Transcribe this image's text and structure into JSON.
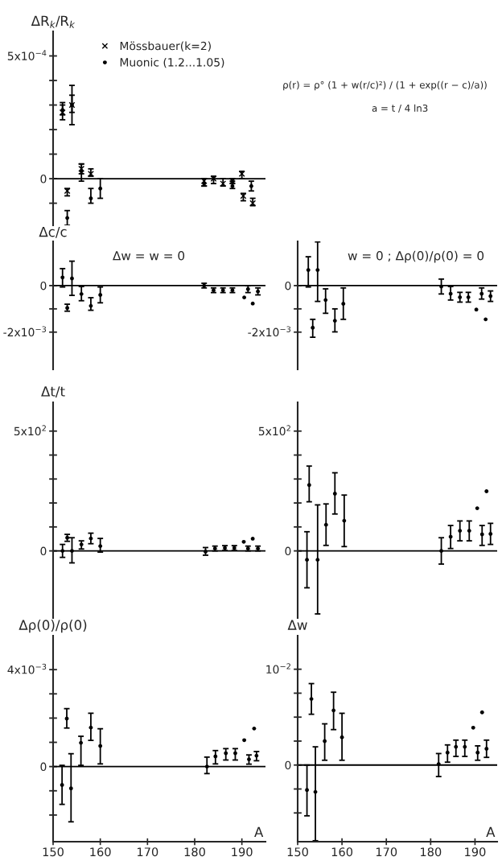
{
  "chart_data": [
    {
      "type": "scatter",
      "ylabel": "ΔR$_{k}$/R$_{k}$",
      "xlim": [
        150,
        195
      ],
      "ylim": [
        -0.00019,
        0.0006
      ],
      "tick_labels": "y",
      "legend": "top",
      "grid": false,
      "yticks": [
        {
          "value": -0.0001,
          "label": null
        },
        0,
        {
          "value": 0.0001,
          "label": null
        },
        {
          "value": 0.0002,
          "label": null
        },
        {
          "value": 0.0003,
          "label": null
        },
        {
          "value": 0.0004,
          "label": null
        },
        {
          "value": 0.0005,
          "label": "5x10$^{−4}$"
        }
      ],
      "ref_lines": [
        {
          "axis": "y",
          "value": 0,
          "color": "#000000"
        }
      ],
      "annotations": [
        "ρ(r) = ρ° (1 + w(r/c)²) / (1 + exp((r − c)/a))",
        "a = t / 4 ln3"
      ],
      "series": [
        {
          "name": "Mössbauer(k=2)",
          "color": "#000000",
          "marker": "cross",
          "x": [
            152,
            153,
            154,
            156,
            158,
            182,
            184,
            186,
            188,
            190,
            190.3,
            192.3
          ],
          "values": [
            0.00027,
            -5e-05,
            0.0003,
            4e-05,
            2e-05,
            -1e-05,
            0,
            -2e-05,
            -1e-05,
            2e-05,
            -7e-05,
            -0.0001
          ],
          "errors": [
            [
              0.00024,
              0.0003
            ],
            [
              -7e-05,
              -4e-05
            ],
            [
              0.00027,
              0.00034
            ],
            [
              2e-05,
              6e-05
            ],
            [
              1e-05,
              4e-05
            ],
            [
              -3e-05,
              0
            ],
            [
              -2e-05,
              1e-05
            ],
            [
              -3e-05,
              0
            ],
            [
              -2e-05,
              0
            ],
            [
              0,
              3e-05
            ],
            [
              -9e-05,
              -6e-05
            ],
            [
              -0.00011,
              -8e-05
            ]
          ]
        },
        {
          "name": "Muonic (1.2...1.05)",
          "color": "#000000",
          "marker": "circle",
          "x": [
            152,
            153,
            154,
            156,
            158,
            160,
            182,
            188,
            192
          ],
          "values": [
            0.00028,
            -0.00016,
            0.0003,
            3e-05,
            -8e-05,
            -4e-05,
            -2e-05,
            -3e-05,
            -3e-05
          ],
          "errors": [
            [
              0.00026,
              0.00031
            ],
            [
              -0.00019,
              -0.00013
            ],
            [
              0.00022,
              0.00038
            ],
            [
              -1e-05,
              6e-05
            ],
            [
              -0.0001,
              -4e-05
            ],
            [
              -8e-05,
              0
            ],
            [
              -3e-05,
              0
            ],
            [
              -4e-05,
              -1e-05
            ],
            [
              -5e-05,
              -1e-05
            ]
          ]
        }
      ]
    },
    {
      "type": "scatter",
      "ylabel": "Δc/c",
      "xlim": [
        150,
        195
      ],
      "ylim": [
        -0.0036,
        0.0019
      ],
      "tick_labels": "y",
      "grid": false,
      "yticks": [
        {
          "value": -0.002,
          "label": "-2x10$^{−3}$"
        },
        {
          "value": -0.001,
          "label": null
        },
        0
      ],
      "ref_lines": [
        {
          "axis": "y",
          "value": 0,
          "color": "#000000"
        }
      ],
      "annotations": [
        "Δw = w = 0"
      ],
      "series": [
        {
          "color": "#000000",
          "marker": "circle",
          "x": [
            152,
            153,
            154,
            156,
            158,
            160,
            182,
            184,
            186,
            188,
            191.3,
            193.4
          ],
          "values": [
            0.00035,
            -0.00096,
            0.00031,
            -0.00036,
            -0.00087,
            -0.0004,
            0,
            -0.0002,
            -0.0002,
            -0.0002,
            -0.00015,
            -0.00025
          ],
          "errors": [
            [
              -6e-05,
              0.00073
            ],
            [
              -0.0011,
              -0.0008
            ],
            [
              -0.00042,
              0.00105
            ],
            [
              -0.00065,
              -4e-05
            ],
            [
              -0.00106,
              -0.00052
            ],
            [
              -0.00074,
              -6e-05
            ],
            [
              -0.0001,
              0.0001
            ],
            [
              -0.0003,
              -0.0001
            ],
            [
              -0.0003,
              -0.0001
            ],
            [
              -0.0003,
              -0.0001
            ],
            [
              -0.0003,
              0
            ],
            [
              -0.0004,
              -0.0001
            ]
          ]
        },
        {
          "color": "#000000",
          "marker": "circle",
          "x": [
            190.5,
            192.3
          ],
          "values": [
            -0.00051,
            -0.00077
          ]
        }
      ]
    },
    {
      "type": "scatter",
      "xlim": [
        150,
        195
      ],
      "ylim": [
        -0.0036,
        0.0019
      ],
      "tick_labels": "y",
      "grid": false,
      "yticks": [
        {
          "value": -0.002,
          "label": "-2x10$^{−3}$"
        },
        {
          "value": -0.001,
          "label": null
        },
        0
      ],
      "ref_lines": [
        {
          "axis": "y",
          "value": 0,
          "color": "#000000"
        }
      ],
      "annotations": [
        "w = 0 ; Δρ(0)/ρ(0) = 0"
      ],
      "series": [
        {
          "color": "#000000",
          "marker": "circle",
          "x": [
            152.4,
            153.4,
            154.5,
            156.3,
            158.4,
            160.3,
            182.4,
            184.5,
            186.6,
            188.5,
            191.5,
            193.5
          ],
          "values": [
            0.00067,
            -0.00181,
            0.00067,
            -0.00062,
            -0.00151,
            -0.00078,
            -4e-05,
            -0.00035,
            -0.0005,
            -0.0005,
            -0.00035,
            -0.00045
          ],
          "errors": [
            [
              -6e-05,
              0.00124
            ],
            [
              -0.00222,
              -0.00145
            ],
            [
              -0.00068,
              0.00188
            ],
            [
              -0.00119,
              -0.00014
            ],
            [
              -0.00199,
              -0.001
            ],
            [
              -0.00145,
              -0.0001
            ],
            [
              -0.00036,
              0.00028
            ],
            [
              -0.00062,
              -4e-05
            ],
            [
              -0.00071,
              -0.00029
            ],
            [
              -0.00071,
              -0.00029
            ],
            [
              -0.00058,
              -0.0001
            ],
            [
              -0.00068,
              -0.00023
            ]
          ]
        },
        {
          "color": "#000000",
          "marker": "circle",
          "x": [
            190.3,
            192.4
          ],
          "values": [
            -0.00103,
            -0.00145
          ]
        }
      ]
    },
    {
      "type": "scatter",
      "ylabel": "Δt/t",
      "xlim": [
        150,
        195
      ],
      "ylim": [
        -280,
        620
      ],
      "tick_labels": "y",
      "grid": false,
      "yticks": [
        0,
        {
          "value": 100,
          "label": null
        },
        {
          "value": 200,
          "label": null
        },
        {
          "value": 300,
          "label": null
        },
        {
          "value": 400,
          "label": null
        },
        {
          "value": 500,
          "label": "5x10$^{2}$"
        }
      ],
      "ref_lines": [
        {
          "axis": "y",
          "value": 0,
          "color": "#000000"
        }
      ],
      "series": [
        {
          "color": "#000000",
          "marker": "circle",
          "x": [
            152,
            153,
            154,
            156,
            158,
            160,
            182.3,
            184.3,
            186.4,
            188.4,
            191.3,
            193.4
          ],
          "values": [
            0,
            55,
            0,
            27,
            52,
            20,
            -3,
            10,
            12,
            12,
            10,
            10
          ],
          "errors": [
            [
              -27,
              27
            ],
            [
              40,
              69
            ],
            [
              -50,
              55
            ],
            [
              8,
              42
            ],
            [
              30,
              74
            ],
            [
              -5,
              52
            ],
            [
              -18,
              14
            ],
            [
              0,
              20
            ],
            [
              2,
              22
            ],
            [
              2,
              22
            ],
            [
              0,
              20
            ],
            [
              0,
              20
            ]
          ]
        },
        {
          "color": "#000000",
          "marker": "circle",
          "x": [
            190.4,
            192.3
          ],
          "values": [
            38,
            51
          ]
        }
      ]
    },
    {
      "type": "scatter",
      "xlim": [
        150,
        195
      ],
      "ylim": [
        -280,
        620
      ],
      "tick_labels": "y",
      "grid": false,
      "yticks": [
        0,
        {
          "value": 100,
          "label": null
        },
        {
          "value": 200,
          "label": null
        },
        {
          "value": 300,
          "label": null
        },
        {
          "value": 400,
          "label": null
        },
        {
          "value": 500,
          "label": "5x10$^{2}$"
        }
      ],
      "ref_lines": [
        {
          "axis": "y",
          "value": 0,
          "color": "#000000"
        }
      ],
      "series": [
        {
          "color": "#000000",
          "marker": "circle",
          "x": [
            152.1,
            152.6,
            154.5,
            156.4,
            158.4,
            160.5,
            182.4,
            184.5,
            186.6,
            188.7,
            191.6,
            193.5
          ],
          "values": [
            -37,
            275,
            -37,
            109,
            239,
            126,
            0,
            59,
            84,
            84,
            69,
            71
          ],
          "errors": [
            [
              -154,
              80
            ],
            [
              205,
              354
            ],
            [
              -263,
              192
            ],
            [
              23,
              196
            ],
            [
              154,
              326
            ],
            [
              18,
              233
            ],
            [
              -55,
              55
            ],
            [
              10,
              106
            ],
            [
              42,
              125
            ],
            [
              42,
              125
            ],
            [
              23,
              106
            ],
            [
              27,
              115
            ]
          ]
        },
        {
          "color": "#000000",
          "marker": "circle",
          "x": [
            190.5,
            192.6
          ],
          "values": [
            178,
            249
          ]
        }
      ]
    },
    {
      "type": "scatter",
      "ylabel": "Δρ(0)/ρ(0)",
      "xlabel": "A",
      "xlim": [
        150,
        195
      ],
      "ylim": [
        -0.0031,
        0.0054
      ],
      "grid": false,
      "xticks": [
        150,
        160,
        170,
        180,
        190
      ],
      "yticks": [
        {
          "value": -0.002,
          "label": null
        },
        {
          "value": -0.001,
          "label": null
        },
        0,
        {
          "value": 0.001,
          "label": null
        },
        {
          "value": 0.002,
          "label": null
        },
        {
          "value": 0.003,
          "label": null
        },
        {
          "value": 0.004,
          "label": "4x10$^{−3}$"
        }
      ],
      "ref_lines": [
        {
          "axis": "y",
          "value": 0,
          "color": "#000000"
        }
      ],
      "series": [
        {
          "color": "#000000",
          "marker": "circle",
          "x": [
            151.9,
            152.9,
            153.8,
            155.9,
            158,
            160,
            182.6,
            184.4,
            186.6,
            188.6,
            191.5,
            193.1
          ],
          "values": [
            -0.00076,
            0.00198,
            -0.0009,
            0.00098,
            0.00161,
            0.00085,
            0,
            0.00042,
            0.00055,
            0.00055,
            0.0003,
            0.00045
          ],
          "errors": [
            [
              -0.00156,
              5e-05
            ],
            [
              0.00159,
              0.00239
            ],
            [
              -0.00228,
              0.00053
            ],
            [
              5e-05,
              0.00125
            ],
            [
              0.00108,
              0.0022
            ],
            [
              0.00011,
              0.00156
            ],
            [
              -0.00029,
              0.00039
            ],
            [
              0.00011,
              0.00066
            ],
            [
              0.00027,
              0.00074
            ],
            [
              0.00027,
              0.00074
            ],
            [
              0.0001,
              0.00048
            ],
            [
              0.00024,
              0.00062
            ]
          ]
        },
        {
          "color": "#000000",
          "marker": "circle",
          "x": [
            190.5,
            192.6
          ],
          "values": [
            0.00109,
            0.00157
          ]
        }
      ]
    },
    {
      "type": "scatter",
      "ylabel": "Δw",
      "xlabel": "A",
      "xlim": [
        150,
        195
      ],
      "ylim": [
        -0.008,
        0.0135
      ],
      "grid": false,
      "xticks": [
        150,
        160,
        170,
        180,
        190
      ],
      "yticks": [
        {
          "value": -0.005,
          "label": null
        },
        {
          "value": -0.0025,
          "label": null
        },
        0,
        {
          "value": 0.0025,
          "label": null
        },
        {
          "value": 0.005,
          "label": null
        },
        {
          "value": 0.0075,
          "label": null
        },
        {
          "value": 0.01,
          "label": "10$^{−2}$"
        }
      ],
      "ref_lines": [
        {
          "axis": "y",
          "value": 0,
          "color": "#000000"
        }
      ],
      "series": [
        {
          "color": "#000000",
          "marker": "circle",
          "x": [
            152.1,
            153.1,
            154,
            156.1,
            158.1,
            160,
            181.8,
            183.8,
            185.7,
            187.7,
            190.6,
            192.6
          ],
          "values": [
            -0.0026,
            0.0069,
            -0.0028,
            0.0025,
            0.0057,
            0.0029,
            0.0001,
            0.0013,
            0.0019,
            0.0019,
            0.0013,
            0.0017
          ],
          "errors": [
            [
              -0.0053,
              0
            ],
            [
              0.0053,
              0.0085
            ],
            [
              -0.0079,
              0.0019
            ],
            [
              0.0005,
              0.0043
            ],
            [
              0.0037,
              0.0076
            ],
            [
              0.0005,
              0.0054
            ],
            [
              -0.0012,
              0.0012
            ],
            [
              0.0003,
              0.0021
            ],
            [
              0.0009,
              0.0026
            ],
            [
              0.0009,
              0.0026
            ],
            [
              0.0005,
              0.002
            ],
            [
              0.0008,
              0.0026
            ]
          ]
        },
        {
          "color": "#000000",
          "marker": "circle",
          "x": [
            189.6,
            191.6
          ],
          "values": [
            0.0039,
            0.0055
          ]
        }
      ]
    }
  ]
}
